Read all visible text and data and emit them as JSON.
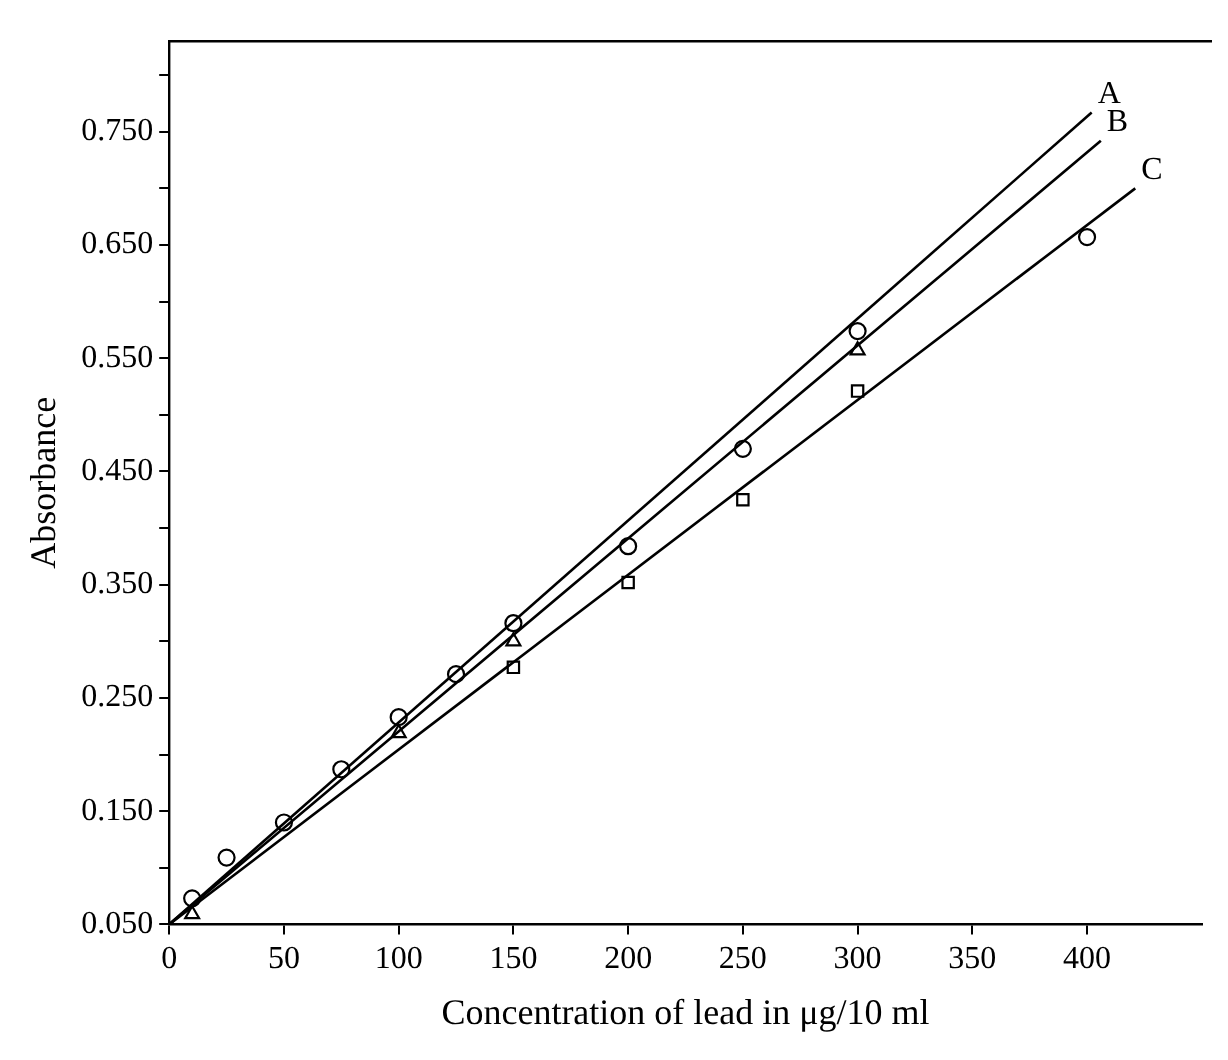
{
  "chart_data": {
    "type": "scatter",
    "xlabel": "Concentration of lead in μg/10 ml",
    "ylabel": "Absorbance",
    "xlim": [
      0,
      450
    ],
    "ylim": [
      0.05,
      0.83
    ],
    "xticks": [
      0,
      50,
      100,
      150,
      200,
      250,
      300,
      350,
      400
    ],
    "yticks": [
      {
        "value": 0.05,
        "label": "0.050"
      },
      {
        "value": 0.1,
        "label": null
      },
      {
        "value": 0.15,
        "label": "0.150"
      },
      {
        "value": 0.2,
        "label": null
      },
      {
        "value": 0.25,
        "label": "0.250"
      },
      {
        "value": 0.3,
        "label": null
      },
      {
        "value": 0.35,
        "label": "0.350"
      },
      {
        "value": 0.4,
        "label": null
      },
      {
        "value": 0.45,
        "label": "0.450"
      },
      {
        "value": 0.5,
        "label": null
      },
      {
        "value": 0.55,
        "label": "0.550"
      },
      {
        "value": 0.6,
        "label": null
      },
      {
        "value": 0.65,
        "label": "0.650"
      },
      {
        "value": 0.7,
        "label": null
      },
      {
        "value": 0.75,
        "label": "0.750"
      },
      {
        "value": 0.8,
        "label": null
      }
    ],
    "grid": false,
    "legend": false,
    "series": [
      {
        "type": "line",
        "name": "A",
        "color": "#000000",
        "marker": "none",
        "line_style": "solid",
        "x": [
          0,
          402
        ],
        "values": [
          0.05,
          0.767
        ]
      },
      {
        "type": "line",
        "name": "B",
        "color": "#000000",
        "marker": "none",
        "line_style": "solid",
        "x": [
          0,
          406
        ],
        "values": [
          0.05,
          0.742
        ]
      },
      {
        "type": "line",
        "name": "C",
        "color": "#000000",
        "marker": "none",
        "line_style": "solid",
        "x": [
          0,
          421
        ],
        "values": [
          0.05,
          0.7
        ]
      },
      {
        "color": "#000000",
        "marker": "circle",
        "x": [
          10,
          25,
          50,
          75,
          100,
          125,
          150,
          200,
          250,
          300,
          400
        ],
        "values": [
          0.073,
          0.109,
          0.14,
          0.187,
          0.233,
          0.271,
          0.316,
          0.384,
          0.47,
          0.574,
          0.657
        ]
      },
      {
        "color": "#000000",
        "marker": "triangle",
        "x": [
          10,
          100,
          150,
          300
        ],
        "values": [
          0.059,
          0.219,
          0.3,
          0.557
        ]
      },
      {
        "color": "#000000",
        "marker": "square",
        "x": [
          150,
          200,
          250,
          300
        ],
        "values": [
          0.277,
          0.352,
          0.425,
          0.521
        ]
      }
    ]
  }
}
